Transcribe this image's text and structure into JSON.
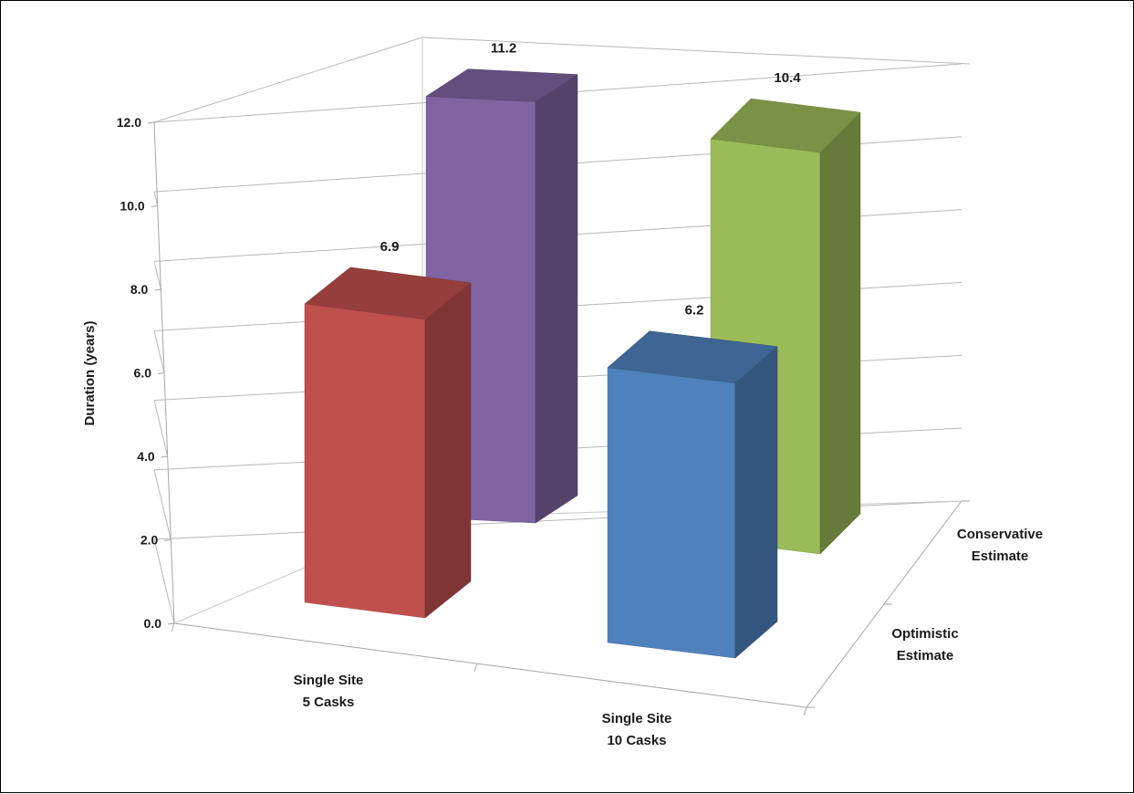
{
  "chart_data": {
    "type": "bar",
    "title": "",
    "xlabel": "",
    "ylabel": "Duration (years)",
    "ylim": [
      0,
      12
    ],
    "yticks": [
      "0.0",
      "2.0",
      "4.0",
      "6.0",
      "8.0",
      "10.0",
      "12.0"
    ],
    "categories": [
      [
        "Single Site",
        "5 Casks"
      ],
      [
        "Single Site",
        "10 Casks"
      ]
    ],
    "depth_categories": [
      [
        "Optimistic",
        "Estimate"
      ],
      [
        "Conservative",
        "Estimate"
      ]
    ],
    "series": [
      {
        "values": [
          6.9,
          6.2
        ],
        "value_labels": [
          "6.9",
          "6.2"
        ]
      },
      {
        "values": [
          11.2,
          10.4
        ],
        "value_labels": [
          "11.2",
          "10.4"
        ]
      }
    ],
    "colors": {
      "optimistic_5": "#c0504d",
      "conservative_5": "#8064a2",
      "optimistic_10": "#4f81bd",
      "conservative_10": "#9bbb59"
    },
    "grid": true,
    "projection": "3d"
  }
}
